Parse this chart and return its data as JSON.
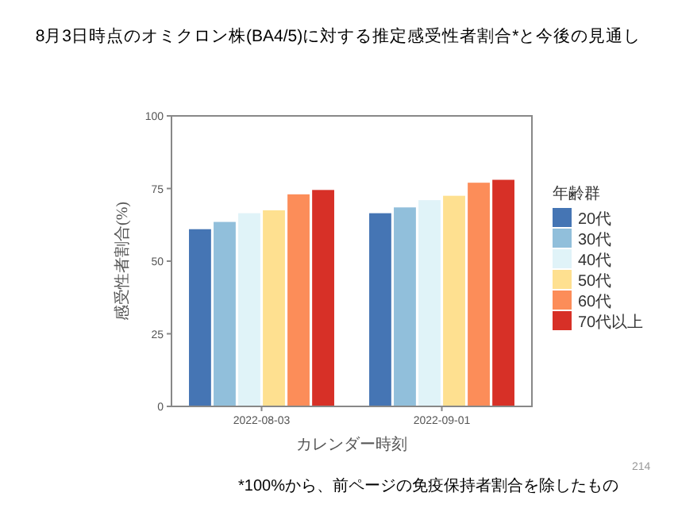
{
  "chart_data": {
    "type": "bar",
    "title": "8月3日時点のオミクロン株(BA4/5)に対する推定感受性者割合*と今後の見通し",
    "xlabel": "カレンダー時刻",
    "ylabel": "感受性者割合(%)",
    "legend_title": "年齢群",
    "legend": "right",
    "grid": false,
    "categories": [
      "2022-08-03",
      "2022-09-01"
    ],
    "ylim": [
      0,
      100
    ],
    "yticks": [
      0,
      25,
      50,
      75,
      100
    ],
    "series": [
      {
        "name": "20代",
        "color": "#4575b4",
        "values": [
          61,
          66.5
        ]
      },
      {
        "name": "30代",
        "color": "#91bfdb",
        "values": [
          63.5,
          68.5
        ]
      },
      {
        "name": "40代",
        "color": "#e0f3f8",
        "values": [
          66.5,
          71
        ]
      },
      {
        "name": "50代",
        "color": "#fee090",
        "values": [
          67.5,
          72.5
        ]
      },
      {
        "name": "60代",
        "color": "#fc8d59",
        "values": [
          73,
          77
        ]
      },
      {
        "name": "70代以上",
        "color": "#d73027",
        "values": [
          74.5,
          78
        ]
      }
    ],
    "annotations": [
      "*100%から、前ページの免疫保持者割合を除したもの",
      "214"
    ]
  }
}
